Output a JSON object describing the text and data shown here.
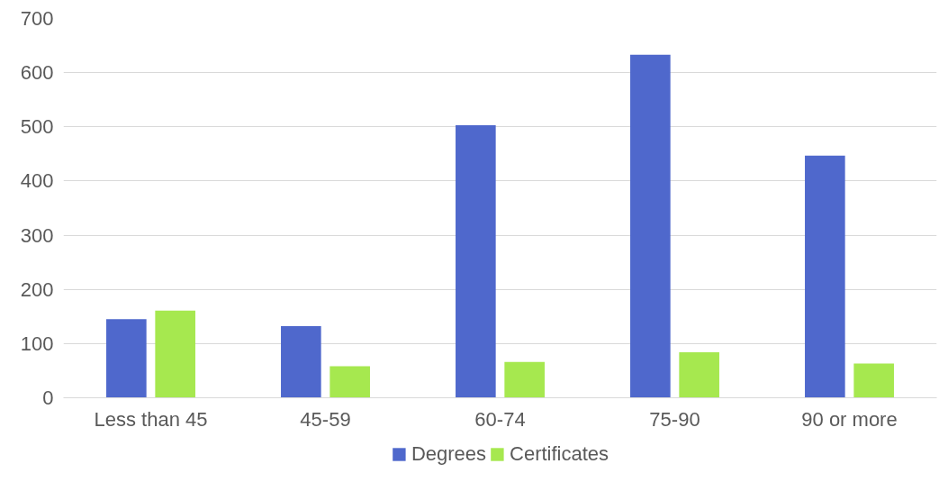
{
  "chart_data": {
    "type": "bar",
    "categories": [
      "Less than 45",
      "45-59",
      "60-74",
      "75-90",
      "90 or more"
    ],
    "series": [
      {
        "name": "Degrees",
        "color": "#4f68cc",
        "values": [
          145,
          132,
          503,
          633,
          447
        ]
      },
      {
        "name": "Certificates",
        "color": "#a6e84f",
        "values": [
          161,
          58,
          66,
          84,
          63
        ]
      }
    ],
    "ylim": [
      0,
      700
    ],
    "yticks": [
      0,
      100,
      200,
      300,
      400,
      500,
      600,
      700
    ],
    "grid": "y",
    "legend": "bottom"
  }
}
